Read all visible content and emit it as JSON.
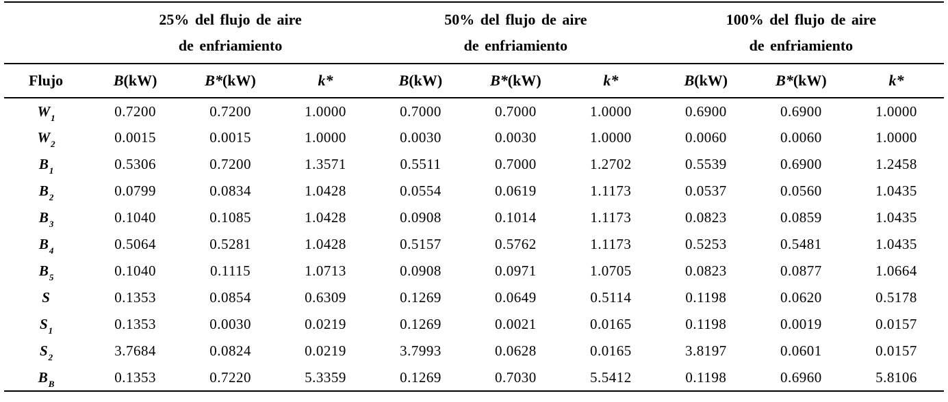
{
  "table": {
    "row_header": "Flujo",
    "groups": [
      {
        "line1": "25% del flujo de aire",
        "line2": "de  enfriamiento"
      },
      {
        "line1": "50% del flujo de aire",
        "line2": "de  enfriamiento"
      },
      {
        "line1": "100% del flujo de aire",
        "line2": "de  enfriamiento"
      }
    ],
    "subheaders": [
      {
        "sym": "B",
        "rest": "(kW)"
      },
      {
        "sym": "B*",
        "rest": "(kW)"
      },
      {
        "sym": "k*",
        "rest": ""
      }
    ],
    "rows": [
      {
        "label": "W",
        "sub": "1",
        "values": [
          "0.7200",
          "0.7200",
          "1.0000",
          "0.7000",
          "0.7000",
          "1.0000",
          "0.6900",
          "0.6900",
          "1.0000"
        ]
      },
      {
        "label": "W",
        "sub": "2",
        "values": [
          "0.0015",
          "0.0015",
          "1.0000",
          "0.0030",
          "0.0030",
          "1.0000",
          "0.0060",
          "0.0060",
          "1.0000"
        ]
      },
      {
        "label": "B",
        "sub": "1",
        "values": [
          "0.5306",
          "0.7200",
          "1.3571",
          "0.5511",
          "0.7000",
          "1.2702",
          "0.5539",
          "0.6900",
          "1.2458"
        ]
      },
      {
        "label": "B",
        "sub": "2",
        "values": [
          "0.0799",
          "0.0834",
          "1.0428",
          "0.0554",
          "0.0619",
          "1.1173",
          "0.0537",
          "0.0560",
          "1.0435"
        ]
      },
      {
        "label": "B",
        "sub": "3",
        "values": [
          "0.1040",
          "0.1085",
          "1.0428",
          "0.0908",
          "0.1014",
          "1.1173",
          "0.0823",
          "0.0859",
          "1.0435"
        ]
      },
      {
        "label": "B",
        "sub": "4",
        "values": [
          "0.5064",
          "0.5281",
          "1.0428",
          "0.5157",
          "0.5762",
          "1.1173",
          "0.5253",
          "0.5481",
          "1.0435"
        ]
      },
      {
        "label": "B",
        "sub": "5",
        "values": [
          "0.1040",
          "0.1115",
          "1.0713",
          "0.0908",
          "0.0971",
          "1.0705",
          "0.0823",
          "0.0877",
          "1.0664"
        ]
      },
      {
        "label": "S",
        "sub": "",
        "values": [
          "0.1353",
          "0.0854",
          "0.6309",
          "0.1269",
          "0.0649",
          "0.5114",
          "0.1198",
          "0.0620",
          "0.5178"
        ]
      },
      {
        "label": "S",
        "sub": "1",
        "values": [
          "0.1353",
          "0.0030",
          "0.0219",
          "0.1269",
          "0.0021",
          "0.0165",
          "0.1198",
          "0.0019",
          "0.0157"
        ]
      },
      {
        "label": "S",
        "sub": "2",
        "values": [
          "3.7684",
          "0.0824",
          "0.0219",
          "3.7993",
          "0.0628",
          "0.0165",
          "3.8197",
          "0.0601",
          "0.0157"
        ]
      },
      {
        "label": "B",
        "sub": "B",
        "values": [
          "0.1353",
          "0.7220",
          "5.3359",
          "0.1269",
          "0.7030",
          "5.5412",
          "0.1198",
          "0.6960",
          "5.8106"
        ]
      }
    ]
  }
}
